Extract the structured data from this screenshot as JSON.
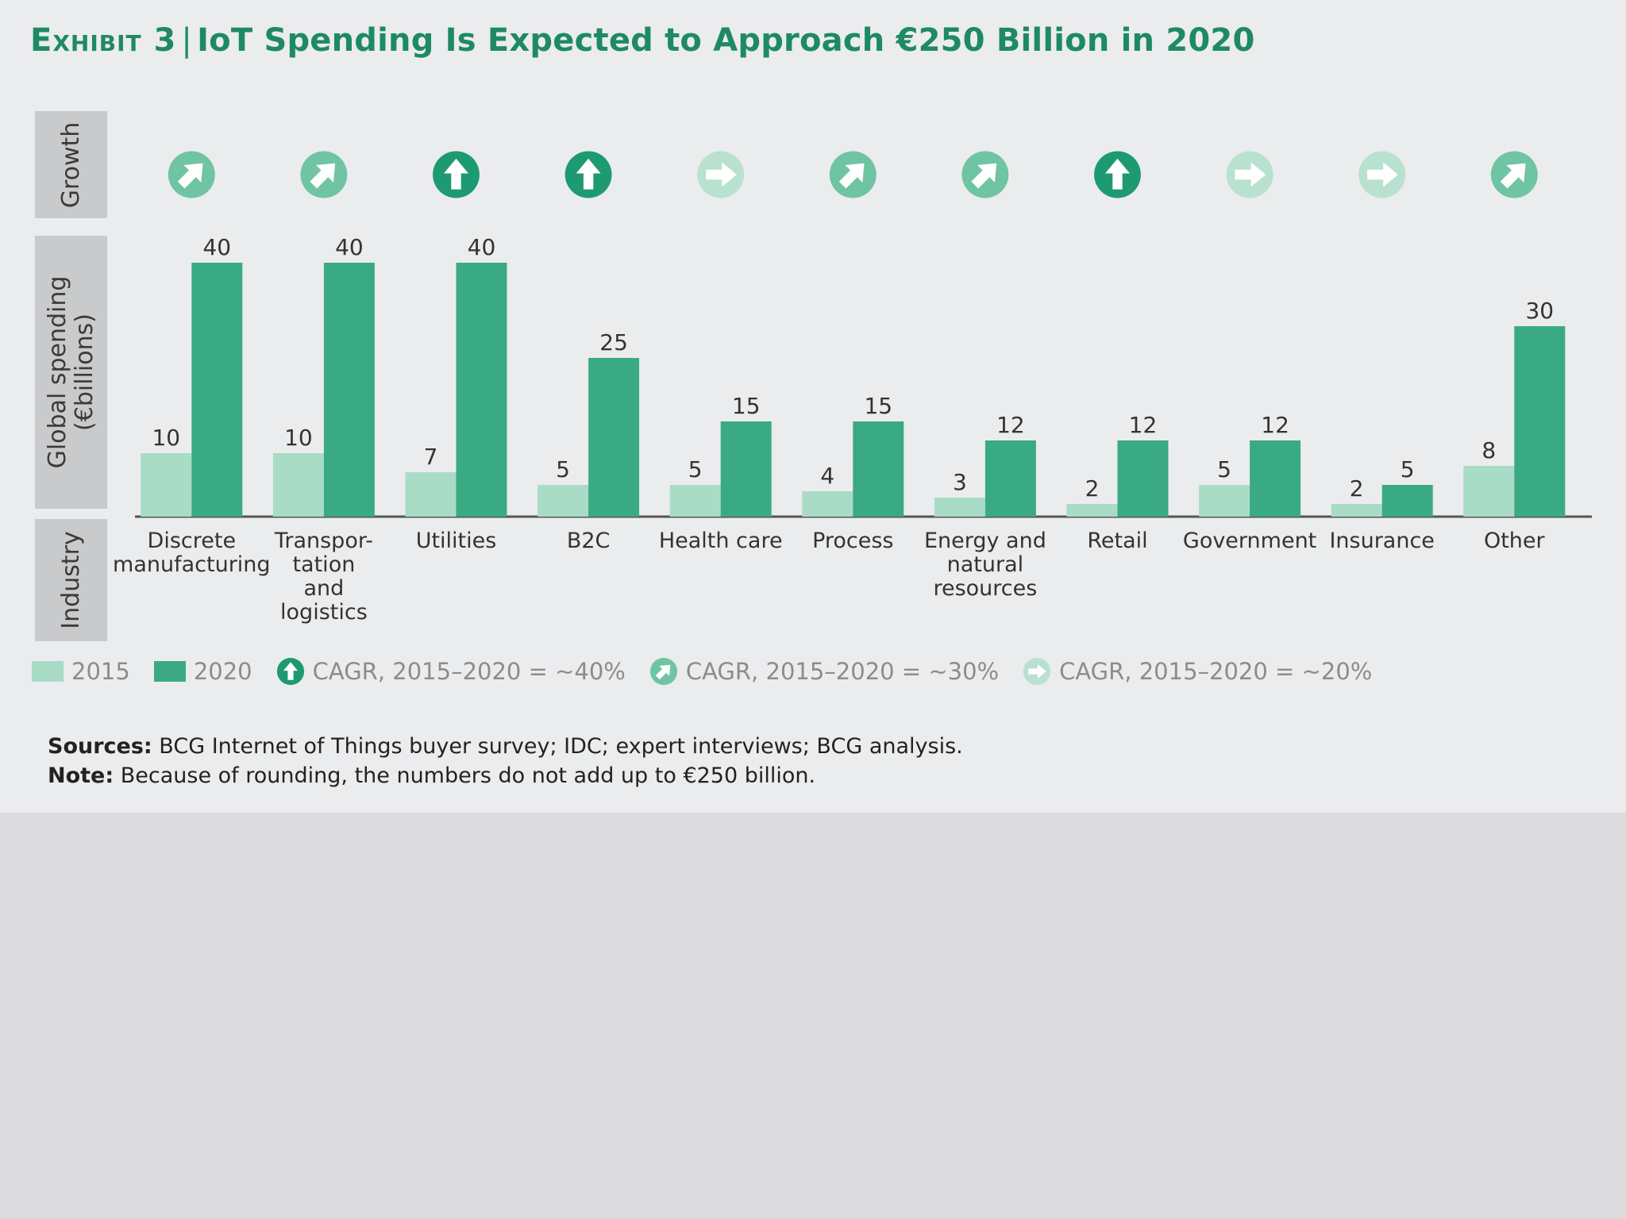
{
  "title": {
    "lead": "Exhibit 3",
    "separator": "|",
    "text": "IoT Spending Is Expected to Approach €250 Billion in 2020"
  },
  "row_labels": {
    "growth": "Growth",
    "spending_line1": "Global spending",
    "spending_line2": "(€billions)",
    "industry": "Industry"
  },
  "colors": {
    "y2015": "#a8dcc6",
    "y2020": "#3aaa85",
    "growth40": "#1e9a72",
    "growth30": "#6fc4a3",
    "growth20": "#b9e1d0"
  },
  "chart_data": {
    "type": "bar",
    "categories": [
      [
        "Discrete",
        "manufacturing"
      ],
      [
        "Transpor-",
        "tation",
        "and",
        "logistics"
      ],
      [
        "Utilities"
      ],
      [
        "B2C"
      ],
      [
        "Health care"
      ],
      [
        "Process"
      ],
      [
        "Energy and",
        "natural",
        "resources"
      ],
      [
        "Retail"
      ],
      [
        "Government"
      ],
      [
        "Insurance"
      ],
      [
        "Other"
      ]
    ],
    "series": [
      {
        "name": "2015",
        "values": [
          10,
          10,
          7,
          5,
          5,
          4,
          3,
          2,
          5,
          2,
          8
        ]
      },
      {
        "name": "2020",
        "values": [
          40,
          40,
          40,
          25,
          15,
          15,
          12,
          12,
          12,
          5,
          30
        ]
      }
    ],
    "growth_cagr": [
      "~30%",
      "~30%",
      "~40%",
      "~40%",
      "~20%",
      "~30%",
      "~30%",
      "~40%",
      "~20%",
      "~20%",
      "~30%"
    ],
    "ylabel": "Global spending (€billions)",
    "ylim": [
      0,
      40
    ]
  },
  "legend": {
    "y2015": "2015",
    "y2020": "2020",
    "cagr40": "CAGR, 2015–2020 = ~40%",
    "cagr30": "CAGR, 2015–2020 = ~30%",
    "cagr20": "CAGR, 2015–2020 = ~20%"
  },
  "notes": {
    "sources_label": "Sources:",
    "sources_text": " BCG Internet of Things buyer survey; IDC; expert interviews; BCG analysis.",
    "note_label": "Note:",
    "note_text": " Because of rounding, the numbers do not add up to €250 billion."
  }
}
